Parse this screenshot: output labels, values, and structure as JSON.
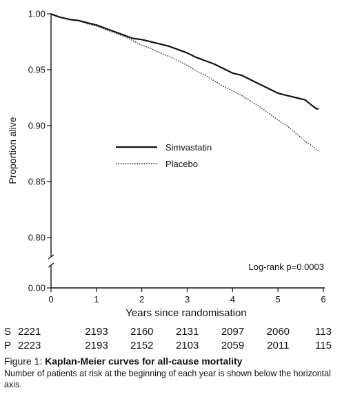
{
  "chart_data": {
    "type": "line",
    "xlabel": "Years since randomisation",
    "ylabel": "Proportion alive",
    "xlim": [
      0,
      6
    ],
    "ylim": [
      0.8,
      1.0
    ],
    "x_ticks": [
      "0",
      "1",
      "2",
      "3",
      "4",
      "5",
      "6"
    ],
    "y_ticks": [
      "1.00",
      "0.95",
      "0.90",
      "0.85",
      "0.80",
      "0.00"
    ],
    "axis_break": true,
    "annotation": "Log-rank p=0.0003",
    "legend_position": "center-left",
    "series": [
      {
        "name": "Simvastatin",
        "style": "solid",
        "x": [
          0,
          0.05,
          0.2,
          0.4,
          0.6,
          0.8,
          1.0,
          1.2,
          1.4,
          1.6,
          1.8,
          2.0,
          2.2,
          2.4,
          2.6,
          2.8,
          3.0,
          3.2,
          3.4,
          3.6,
          3.8,
          4.0,
          4.2,
          4.4,
          4.6,
          4.8,
          5.0,
          5.2,
          5.4,
          5.6,
          5.75,
          5.85,
          5.9
        ],
        "y": [
          1.0,
          0.999,
          0.997,
          0.995,
          0.994,
          0.992,
          0.99,
          0.987,
          0.984,
          0.981,
          0.978,
          0.977,
          0.975,
          0.973,
          0.971,
          0.968,
          0.965,
          0.961,
          0.958,
          0.955,
          0.951,
          0.947,
          0.945,
          0.941,
          0.937,
          0.933,
          0.929,
          0.927,
          0.925,
          0.923,
          0.918,
          0.915,
          0.915
        ]
      },
      {
        "name": "Placebo",
        "style": "dotted",
        "x": [
          0,
          0.05,
          0.2,
          0.4,
          0.6,
          0.8,
          1.0,
          1.2,
          1.4,
          1.6,
          1.8,
          2.0,
          2.2,
          2.4,
          2.6,
          2.8,
          3.0,
          3.2,
          3.4,
          3.6,
          3.8,
          4.0,
          4.2,
          4.4,
          4.6,
          4.8,
          5.0,
          5.2,
          5.4,
          5.6,
          5.75,
          5.85,
          5.9
        ],
        "y": [
          1.0,
          0.999,
          0.997,
          0.995,
          0.994,
          0.991,
          0.989,
          0.986,
          0.983,
          0.98,
          0.976,
          0.972,
          0.969,
          0.965,
          0.962,
          0.958,
          0.954,
          0.949,
          0.945,
          0.94,
          0.935,
          0.931,
          0.927,
          0.922,
          0.917,
          0.911,
          0.905,
          0.9,
          0.893,
          0.886,
          0.882,
          0.879,
          0.877
        ]
      }
    ]
  },
  "risk_table": {
    "rows": [
      {
        "label": "S",
        "values": [
          "2221",
          "2193",
          "2160",
          "2131",
          "2097",
          "2060",
          "113"
        ]
      },
      {
        "label": "P",
        "values": [
          "2223",
          "2193",
          "2152",
          "2103",
          "2059",
          "2011",
          "115"
        ]
      }
    ]
  },
  "caption": {
    "prefix": "Figure 1: ",
    "title": "Kaplan-Meier curves for all-cause mortality",
    "note": "Number of patients at risk at the beginning of each year is shown below the horizontal axis."
  },
  "colors": {
    "line": "#111111",
    "background": "#ffffff"
  }
}
